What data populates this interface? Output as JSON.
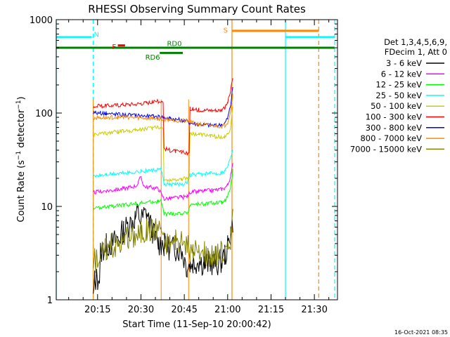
{
  "chart_data": {
    "type": "line",
    "title": "RHESSI Observing Summary Count Rates",
    "xlabel": "Start Time (11-Sep-10 20:00:42)",
    "ylabel": "Count Rate (s⁻¹ detector⁻¹)",
    "x_unit": "minutes after 20:00 UT",
    "xlim": [
      0.7,
      98
    ],
    "ylim": [
      1,
      1000
    ],
    "yscale": "log",
    "x_ticks": [
      {
        "x": 15,
        "label": "20:15"
      },
      {
        "x": 30,
        "label": "20:30"
      },
      {
        "x": 45,
        "label": "20:45"
      },
      {
        "x": 60,
        "label": "21:00"
      },
      {
        "x": 75,
        "label": "21:15"
      },
      {
        "x": 90,
        "label": "21:30"
      }
    ],
    "y_ticks": [
      {
        "y": 1,
        "label": "1"
      },
      {
        "y": 10,
        "label": "10"
      },
      {
        "y": 100,
        "label": "100"
      },
      {
        "y": 1000,
        "label": "1000"
      }
    ],
    "legend_header": [
      "Det 1,3,4,5,6,9,",
      "FDecim 1, Att 0"
    ],
    "legend_position": "right",
    "series": [
      {
        "name": "3 - 6 keV",
        "color": "#000000",
        "x": [
          13.5,
          14,
          15,
          16,
          17,
          18,
          20,
          22,
          24,
          26,
          28,
          29,
          30,
          31,
          32,
          33,
          34,
          35,
          36,
          37,
          38,
          40,
          42,
          44,
          46,
          47,
          48,
          50,
          52,
          54,
          56,
          58,
          59,
          60,
          61,
          61.8
        ],
        "y": [
          1,
          1.6,
          1.7,
          3.2,
          3.5,
          3.8,
          4,
          4.5,
          5.5,
          6.5,
          7.5,
          8.5,
          7,
          8,
          8.5,
          6.5,
          5.5,
          4.5,
          4,
          4,
          3.8,
          3.6,
          3.5,
          3.4,
          2.2,
          2.4,
          2.5,
          2.6,
          2.4,
          2.5,
          2.4,
          2.6,
          3,
          3.6,
          5,
          7
        ]
      },
      {
        "name": "6 - 12 keV",
        "color": "#ff00ff",
        "x": [
          13.5,
          16,
          18,
          20,
          22,
          24,
          26,
          28,
          29,
          30,
          31,
          32,
          33,
          34,
          36,
          38,
          40,
          42,
          44,
          46,
          47,
          48,
          50,
          52,
          54,
          56,
          58,
          59,
          60,
          61,
          61.8
        ],
        "y": [
          14,
          14.5,
          14.7,
          14.9,
          15.2,
          15.5,
          16,
          16.5,
          17.5,
          21,
          16.5,
          16.2,
          16,
          15.8,
          15.5,
          12,
          12.2,
          12.4,
          12.5,
          12.7,
          14.2,
          14.3,
          14.5,
          14.6,
          14.8,
          15,
          15.3,
          15.8,
          17,
          21,
          28
        ]
      },
      {
        "name": "12 - 25 keV",
        "color": "#00ff00",
        "x": [
          13.5,
          16,
          18,
          20,
          22,
          24,
          26,
          28,
          30,
          32,
          34,
          36,
          37,
          38,
          40,
          42,
          44,
          46,
          47,
          48,
          50,
          52,
          54,
          56,
          58,
          59,
          60,
          61,
          61.8
        ],
        "y": [
          9.5,
          9.7,
          9.8,
          10,
          10.2,
          10.3,
          10.5,
          10.7,
          10.9,
          11,
          11.2,
          11.3,
          11.4,
          8.2,
          8.3,
          8.3,
          8.4,
          8.4,
          10.4,
          10.5,
          10.6,
          10.7,
          10.8,
          10.9,
          11,
          11.5,
          12.5,
          16,
          24
        ]
      },
      {
        "name": "25 - 50 keV",
        "color": "#00ffff",
        "x": [
          13.5,
          16,
          18,
          20,
          22,
          24,
          26,
          28,
          30,
          32,
          34,
          36,
          37,
          38,
          40,
          42,
          44,
          46,
          47,
          48,
          50,
          52,
          54,
          56,
          58,
          59,
          60,
          61,
          61.8
        ],
        "y": [
          21,
          21.5,
          22,
          22.2,
          22.5,
          22.8,
          23.1,
          23.4,
          23.7,
          24,
          24.3,
          24.6,
          25,
          17,
          17.2,
          17.3,
          17.5,
          17.6,
          21.5,
          21.8,
          22,
          22.2,
          22.5,
          22.8,
          23,
          24,
          27,
          33,
          42
        ]
      },
      {
        "name": "50 - 100 keV",
        "color": "#cccc00",
        "x": [
          13.5,
          16,
          18,
          20,
          22,
          24,
          26,
          28,
          30,
          32,
          34,
          36,
          37,
          38,
          40,
          42,
          44,
          46,
          47,
          48,
          50,
          52,
          54,
          56,
          58,
          59,
          60,
          61,
          61.8
        ],
        "y": [
          58,
          60,
          61,
          62,
          63,
          64,
          65,
          66,
          67,
          68,
          69,
          70,
          71,
          19,
          19.3,
          19.6,
          19.8,
          20,
          62,
          60,
          59,
          58,
          57,
          56,
          55.5,
          56,
          58,
          70,
          120
        ]
      },
      {
        "name": "100 - 300 keV",
        "color": "#ff0000",
        "x": [
          13.5,
          16,
          18,
          20,
          22,
          24,
          26,
          28,
          30,
          32,
          34,
          36,
          37,
          38,
          40,
          42,
          44,
          46,
          47,
          48,
          50,
          52,
          54,
          56,
          58,
          59,
          60,
          61,
          61.8
        ],
        "y": [
          118,
          119,
          120,
          121,
          122,
          123,
          124,
          125,
          127,
          129,
          131,
          133,
          134,
          42,
          40,
          39,
          38,
          37,
          112,
          110,
          108,
          108,
          107,
          107,
          108,
          112,
          130,
          170,
          240
        ]
      },
      {
        "name": "300 - 800 keV",
        "color": "#0000ff",
        "x": [
          13.5,
          16,
          18,
          20,
          22,
          24,
          26,
          28,
          30,
          32,
          34,
          36,
          37,
          38,
          40,
          42,
          44,
          46,
          47,
          48,
          50,
          52,
          54,
          56,
          58,
          59,
          60,
          61,
          61.8
        ],
        "y": [
          101,
          100,
          99,
          98,
          97,
          96,
          95,
          95,
          94,
          93,
          92,
          92,
          91,
          90,
          88,
          86,
          84,
          82,
          79,
          77,
          76,
          75,
          74,
          74,
          75,
          78,
          88,
          120,
          190
        ]
      },
      {
        "name": "800 - 7000 keV",
        "color": "#ff8800",
        "x": [
          13.5,
          16,
          18,
          20,
          22,
          24,
          26,
          28,
          30,
          32,
          34,
          36,
          37,
          38,
          40,
          42,
          44,
          46,
          47,
          48,
          50,
          52,
          54,
          56,
          58,
          59,
          60,
          61,
          61.8
        ],
        "y": [
          88,
          89,
          89,
          90,
          90,
          90,
          90,
          89,
          89,
          88,
          88,
          87,
          87,
          86,
          85,
          84,
          83,
          82,
          80,
          78,
          76,
          75,
          74,
          73,
          72,
          74,
          80,
          105,
          160
        ]
      },
      {
        "name": "7000 - 15000 keV",
        "color": "#808000",
        "x": [
          13.5,
          14,
          15,
          16,
          17,
          18,
          20,
          22,
          24,
          26,
          28,
          30,
          32,
          34,
          36,
          37,
          38,
          40,
          42,
          44,
          46,
          47,
          48,
          50,
          52,
          54,
          56,
          58,
          59,
          60,
          61,
          61.8
        ],
        "y": [
          2.5,
          2.6,
          2.8,
          3.2,
          3.3,
          3.6,
          3.8,
          4,
          4.3,
          4.6,
          4.9,
          5.3,
          5.6,
          5.8,
          6,
          6.2,
          4.2,
          4.1,
          4.1,
          4,
          4,
          3.2,
          3.2,
          3.1,
          3.1,
          3.1,
          3.1,
          3.1,
          3.1,
          3.3,
          4.5,
          8
        ]
      }
    ],
    "annotations": {
      "night_flag": "N",
      "flare_flag": "F",
      "saa_flag": "S",
      "rd0_label": "RD0",
      "rd6_label": "RD6"
    },
    "flag_segments": [
      {
        "name": "N",
        "color": "#00ffff",
        "y": 650,
        "x": [
          0.7,
          13
        ]
      },
      {
        "name": "N",
        "color": "#00ffff",
        "y": 650,
        "x": [
          80,
          97
        ]
      },
      {
        "name": "F",
        "color": "#ff0000",
        "y": 530,
        "x": [
          22,
          24.5
        ]
      },
      {
        "name": "S",
        "color": "#ff8800",
        "y": 760,
        "x": [
          61.5,
          91.5
        ]
      },
      {
        "name": "RD0",
        "color": "#008000",
        "y": 500,
        "x": [
          0.7,
          97
        ]
      },
      {
        "name": "RD6",
        "color": "#008000",
        "y": 440,
        "x": [
          36.5,
          44.5
        ]
      }
    ],
    "vertical_markers": [
      {
        "x": 0.7,
        "color": "#00ffff",
        "style": "solid"
      },
      {
        "x": 13.5,
        "color": "#00ffff",
        "style": "dashed"
      },
      {
        "x": 61.5,
        "color": "#ff8800",
        "style": "solid"
      },
      {
        "x": 80,
        "color": "#00ffff",
        "style": "solid"
      },
      {
        "x": 91.5,
        "color": "#ff8800",
        "style": "dashed"
      },
      {
        "x": 97,
        "color": "#00ffff",
        "style": "dashed"
      }
    ],
    "attenuator_gaps": [
      {
        "x_from": 13.5,
        "x_to": 13.5,
        "color": "#ff8800"
      },
      {
        "x_from": 37,
        "x_to": 37,
        "color": "#ff8800"
      },
      {
        "x_from": 46.5,
        "x_to": 46.5,
        "color": "#ff8800"
      }
    ]
  },
  "footer": {
    "timestamp": "16-Oct-2021 08:35"
  }
}
